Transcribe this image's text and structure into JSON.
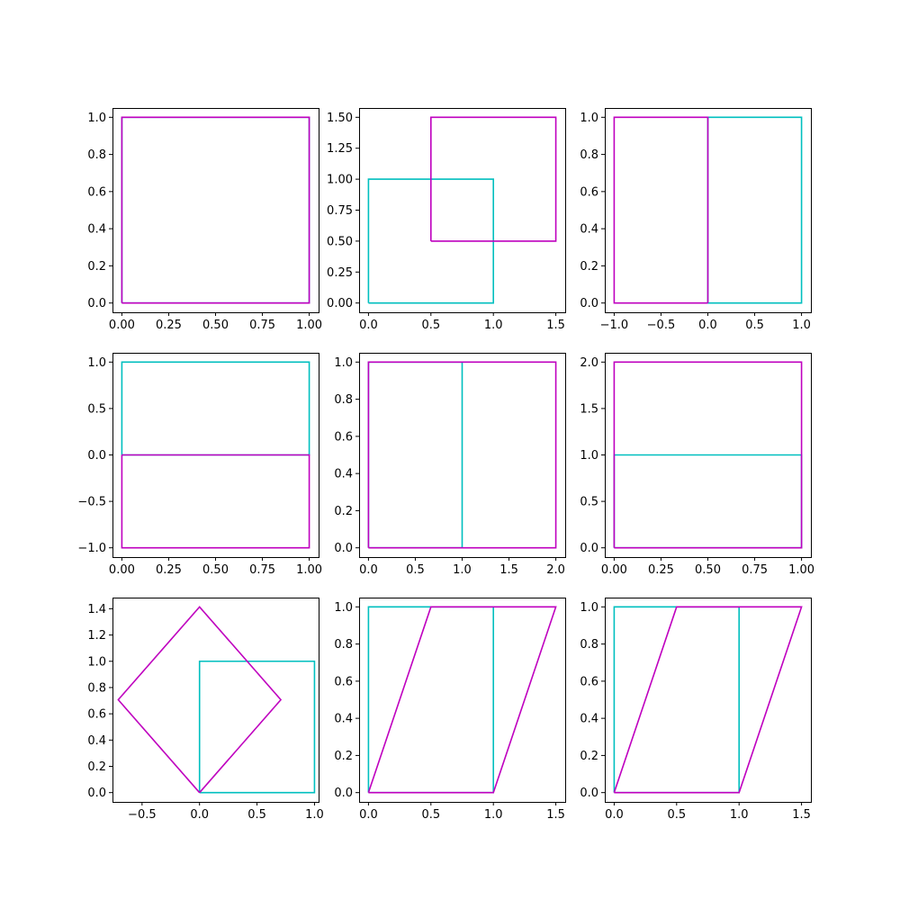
{
  "chart_data": [
    {
      "type": "line",
      "xlim": [
        -0.05,
        1.05
      ],
      "ylim": [
        -0.05,
        1.05
      ],
      "xticks": [
        0,
        0.25,
        0.5,
        0.75,
        1
      ],
      "xtick_labels": [
        "0.00",
        "0.25",
        "0.50",
        "0.75",
        "1.00"
      ],
      "yticks": [
        0,
        0.2,
        0.4,
        0.6,
        0.8,
        1
      ],
      "ytick_labels": [
        "0.0",
        "0.2",
        "0.4",
        "0.6",
        "0.8",
        "1.0"
      ],
      "series": [
        {
          "color": "#00bfbf",
          "x": [
            0,
            1,
            1,
            0,
            0
          ],
          "y": [
            0,
            0,
            1,
            1,
            0
          ]
        },
        {
          "color": "#bf00bf",
          "x": [
            0,
            1,
            1,
            0,
            0
          ],
          "y": [
            0,
            0,
            1,
            1,
            0
          ]
        }
      ]
    },
    {
      "type": "line",
      "xlim": [
        -0.075,
        1.575
      ],
      "ylim": [
        -0.075,
        1.575
      ],
      "xticks": [
        0,
        0.5,
        1,
        1.5
      ],
      "xtick_labels": [
        "0.0",
        "0.5",
        "1.0",
        "1.5"
      ],
      "yticks": [
        0,
        0.25,
        0.5,
        0.75,
        1,
        1.25,
        1.5
      ],
      "ytick_labels": [
        "0.00",
        "0.25",
        "0.50",
        "0.75",
        "1.00",
        "1.25",
        "1.50"
      ],
      "series": [
        {
          "color": "#00bfbf",
          "x": [
            0,
            1,
            1,
            0,
            0
          ],
          "y": [
            0,
            0,
            1,
            1,
            0
          ]
        },
        {
          "color": "#bf00bf",
          "x": [
            0.5,
            1.5,
            1.5,
            0.5,
            0.5
          ],
          "y": [
            0.5,
            0.5,
            1.5,
            1.5,
            0.5
          ]
        }
      ]
    },
    {
      "type": "line",
      "xlim": [
        -1.1,
        1.1
      ],
      "ylim": [
        -0.05,
        1.05
      ],
      "xticks": [
        -1,
        -0.5,
        0,
        0.5,
        1
      ],
      "xtick_labels": [
        "−1.0",
        "−0.5",
        "0.0",
        "0.5",
        "1.0"
      ],
      "yticks": [
        0,
        0.2,
        0.4,
        0.6,
        0.8,
        1
      ],
      "ytick_labels": [
        "0.0",
        "0.2",
        "0.4",
        "0.6",
        "0.8",
        "1.0"
      ],
      "series": [
        {
          "color": "#00bfbf",
          "x": [
            0,
            1,
            1,
            0,
            0
          ],
          "y": [
            0,
            0,
            1,
            1,
            0
          ]
        },
        {
          "color": "#bf00bf",
          "x": [
            0,
            -1,
            -1,
            0,
            0
          ],
          "y": [
            0,
            0,
            1,
            1,
            0
          ]
        }
      ]
    },
    {
      "type": "line",
      "xlim": [
        -0.05,
        1.05
      ],
      "ylim": [
        -1.1,
        1.1
      ],
      "xticks": [
        0,
        0.25,
        0.5,
        0.75,
        1
      ],
      "xtick_labels": [
        "0.00",
        "0.25",
        "0.50",
        "0.75",
        "1.00"
      ],
      "yticks": [
        -1,
        -0.5,
        0,
        0.5,
        1
      ],
      "ytick_labels": [
        "−1.0",
        "−0.5",
        "0.0",
        "0.5",
        "1.0"
      ],
      "series": [
        {
          "color": "#00bfbf",
          "x": [
            0,
            1,
            1,
            0,
            0
          ],
          "y": [
            0,
            0,
            1,
            1,
            0
          ]
        },
        {
          "color": "#bf00bf",
          "x": [
            0,
            1,
            1,
            0,
            0
          ],
          "y": [
            0,
            0,
            -1,
            -1,
            0
          ]
        }
      ]
    },
    {
      "type": "line",
      "xlim": [
        -0.1,
        2.1
      ],
      "ylim": [
        -0.05,
        1.05
      ],
      "xticks": [
        0,
        0.5,
        1,
        1.5,
        2
      ],
      "xtick_labels": [
        "0.0",
        "0.5",
        "1.0",
        "1.5",
        "2.0"
      ],
      "yticks": [
        0,
        0.2,
        0.4,
        0.6,
        0.8,
        1
      ],
      "ytick_labels": [
        "0.0",
        "0.2",
        "0.4",
        "0.6",
        "0.8",
        "1.0"
      ],
      "series": [
        {
          "color": "#00bfbf",
          "x": [
            0,
            1,
            1,
            0,
            0
          ],
          "y": [
            0,
            0,
            1,
            1,
            0
          ]
        },
        {
          "color": "#bf00bf",
          "x": [
            0,
            2,
            2,
            0,
            0
          ],
          "y": [
            0,
            0,
            1,
            1,
            0
          ]
        }
      ]
    },
    {
      "type": "line",
      "xlim": [
        -0.05,
        1.05
      ],
      "ylim": [
        -0.1,
        2.1
      ],
      "xticks": [
        0,
        0.25,
        0.5,
        0.75,
        1
      ],
      "xtick_labels": [
        "0.00",
        "0.25",
        "0.50",
        "0.75",
        "1.00"
      ],
      "yticks": [
        0,
        0.5,
        1,
        1.5,
        2
      ],
      "ytick_labels": [
        "0.0",
        "0.5",
        "1.0",
        "1.5",
        "2.0"
      ],
      "series": [
        {
          "color": "#00bfbf",
          "x": [
            0,
            1,
            1,
            0,
            0
          ],
          "y": [
            0,
            0,
            1,
            1,
            0
          ]
        },
        {
          "color": "#bf00bf",
          "x": [
            0,
            1,
            1,
            0,
            0
          ],
          "y": [
            0,
            0,
            2,
            2,
            0
          ]
        }
      ]
    },
    {
      "type": "line",
      "xlim": [
        -0.7571,
        1.0357
      ],
      "ylim": [
        -0.0707,
        1.4849
      ],
      "xticks": [
        -0.5,
        0,
        0.5,
        1
      ],
      "xtick_labels": [
        "−0.5",
        "0.0",
        "0.5",
        "1.0"
      ],
      "yticks": [
        0,
        0.2,
        0.4,
        0.6,
        0.8,
        1,
        1.2,
        1.4
      ],
      "ytick_labels": [
        "0.0",
        "0.2",
        "0.4",
        "0.6",
        "0.8",
        "1.0",
        "1.2",
        "1.4"
      ],
      "series": [
        {
          "color": "#00bfbf",
          "x": [
            0,
            1,
            1,
            0,
            0
          ],
          "y": [
            0,
            0,
            1,
            1,
            0
          ]
        },
        {
          "color": "#bf00bf",
          "x": [
            0,
            0.7071,
            0,
            -0.7071,
            0
          ],
          "y": [
            0,
            0.7071,
            1.4142,
            0.7071,
            0
          ]
        }
      ]
    },
    {
      "type": "line",
      "xlim": [
        -0.075,
        1.575
      ],
      "ylim": [
        -0.05,
        1.05
      ],
      "xticks": [
        0,
        0.5,
        1,
        1.5
      ],
      "xtick_labels": [
        "0.0",
        "0.5",
        "1.0",
        "1.5"
      ],
      "yticks": [
        0,
        0.2,
        0.4,
        0.6,
        0.8,
        1
      ],
      "ytick_labels": [
        "0.0",
        "0.2",
        "0.4",
        "0.6",
        "0.8",
        "1.0"
      ],
      "series": [
        {
          "color": "#00bfbf",
          "x": [
            0,
            1,
            1,
            0,
            0
          ],
          "y": [
            0,
            0,
            1,
            1,
            0
          ]
        },
        {
          "color": "#bf00bf",
          "x": [
            0,
            1,
            1.5,
            0.5,
            0
          ],
          "y": [
            0,
            0,
            1,
            1,
            0
          ]
        }
      ]
    },
    {
      "type": "line",
      "xlim": [
        -0.075,
        1.575
      ],
      "ylim": [
        -0.05,
        1.05
      ],
      "xticks": [
        0,
        0.5,
        1,
        1.5
      ],
      "xtick_labels": [
        "0.0",
        "0.5",
        "1.0",
        "1.5"
      ],
      "yticks": [
        0,
        0.2,
        0.4,
        0.6,
        0.8,
        1
      ],
      "ytick_labels": [
        "0.0",
        "0.2",
        "0.4",
        "0.6",
        "0.8",
        "1.0"
      ],
      "series": [
        {
          "color": "#00bfbf",
          "x": [
            0,
            1,
            1,
            0,
            0
          ],
          "y": [
            0,
            0,
            1,
            1,
            0
          ]
        },
        {
          "color": "#bf00bf",
          "x": [
            0,
            1,
            1.5,
            0.5,
            0
          ],
          "y": [
            0,
            0,
            1,
            1,
            0
          ]
        }
      ]
    }
  ]
}
